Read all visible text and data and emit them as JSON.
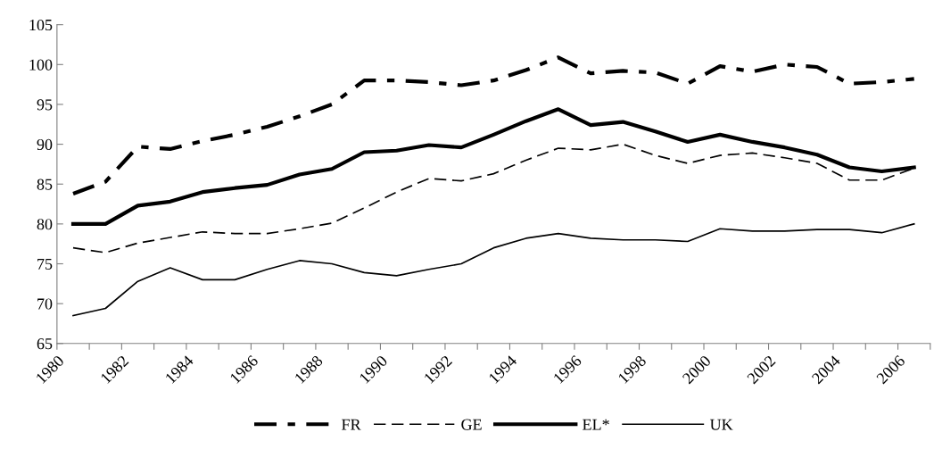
{
  "chart_data": {
    "type": "line",
    "x": [
      1980.5,
      1981.5,
      1982.5,
      1983.5,
      1984.5,
      1985.5,
      1986.5,
      1987.5,
      1988.5,
      1989.5,
      1990.5,
      1991.5,
      1992.5,
      1993.5,
      1994.5,
      1995.5,
      1996.5,
      1997.5,
      1998.5,
      1999.5,
      2000.5,
      2001.5,
      2002.5,
      2003.5,
      2004.5,
      2005.5,
      2006.5
    ],
    "series": [
      {
        "name": "FR",
        "color": "#000000",
        "line_style": "dashdot",
        "values": [
          83.8,
          85.3,
          89.7,
          89.4,
          90.4,
          91.2,
          92.2,
          93.5,
          95.0,
          98.0,
          98.0,
          97.8,
          97.4,
          98.0,
          99.3,
          100.9,
          98.9,
          99.2,
          99.0,
          97.6,
          99.8,
          99.1,
          100.0,
          99.7,
          97.6,
          97.8,
          98.2
        ]
      },
      {
        "name": "GE",
        "color": "#000000",
        "line_style": "dashed",
        "values": [
          77.0,
          76.4,
          77.6,
          78.3,
          79.0,
          78.8,
          78.8,
          79.4,
          80.1,
          82.0,
          84.0,
          85.7,
          85.4,
          86.3,
          88.0,
          89.5,
          89.3,
          90.0,
          88.6,
          87.6,
          88.6,
          88.9,
          88.3,
          87.6,
          85.5,
          85.5,
          87.0
        ]
      },
      {
        "name": "EL*",
        "color": "#000000",
        "line_style": "solid",
        "values": [
          80.0,
          80.0,
          82.3,
          82.8,
          84.0,
          84.5,
          84.9,
          86.2,
          86.9,
          89.0,
          89.2,
          89.9,
          89.6,
          91.2,
          92.9,
          94.4,
          92.4,
          92.8,
          91.6,
          90.3,
          91.2,
          90.3,
          89.6,
          88.7,
          87.1,
          86.6,
          87.1
        ]
      },
      {
        "name": "UK",
        "color": "#000000",
        "line_style": "solid",
        "values": [
          68.5,
          69.4,
          72.8,
          74.5,
          73.0,
          73.0,
          74.3,
          75.4,
          75.0,
          73.9,
          73.5,
          74.3,
          75.0,
          77.0,
          78.2,
          78.8,
          78.2,
          78.0,
          78.0,
          77.8,
          79.4,
          79.1,
          79.1,
          79.3,
          79.3,
          78.9,
          80.0
        ]
      }
    ],
    "xlim": [
      1980,
      2007
    ],
    "xticks": [
      1980,
      {
        "value": 1981,
        "label": null
      },
      1982,
      {
        "value": 1983,
        "label": null
      },
      1984,
      {
        "value": 1985,
        "label": null
      },
      1986,
      {
        "value": 1987,
        "label": null
      },
      1988,
      {
        "value": 1989,
        "label": null
      },
      1990,
      {
        "value": 1991,
        "label": null
      },
      1992,
      {
        "value": 1993,
        "label": null
      },
      1994,
      {
        "value": 1995,
        "label": null
      },
      1996,
      {
        "value": 1997,
        "label": null
      },
      1998,
      {
        "value": 1999,
        "label": null
      },
      2000,
      {
        "value": 2001,
        "label": null
      },
      2002,
      {
        "value": 2003,
        "label": null
      },
      2004,
      {
        "value": 2005,
        "label": null
      },
      2006,
      {
        "value": 2007,
        "label": null
      }
    ],
    "ylim": [
      65,
      105
    ],
    "yticks": [
      65,
      70,
      75,
      80,
      85,
      90,
      95,
      100,
      105
    ],
    "grid": false,
    "legend": "bottom",
    "marker": "none"
  }
}
